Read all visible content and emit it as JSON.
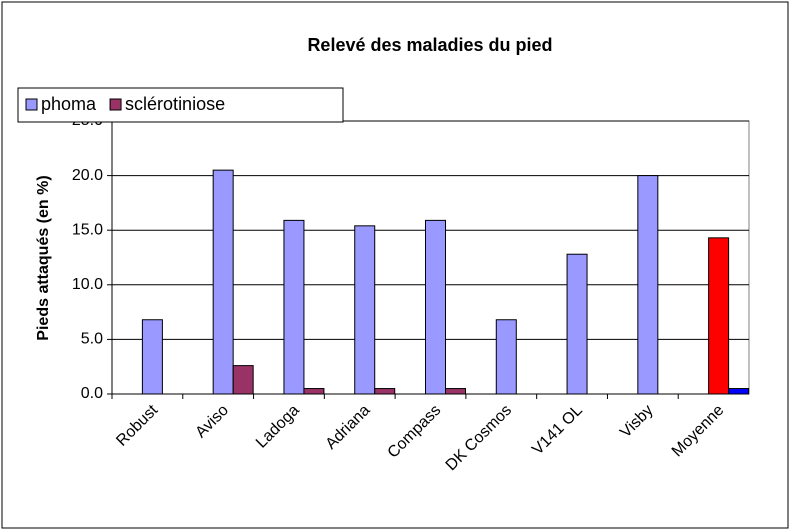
{
  "chart_data": {
    "type": "bar",
    "title": "Relevé des maladies du pied",
    "y_label": "Pieds attaqués (en %)",
    "categories": [
      "Robust",
      "Aviso",
      "Ladoga",
      "Adriana",
      "Compass",
      "DK Cosmos",
      "V141 OL",
      "Visby",
      "Moyenne"
    ],
    "series": [
      {
        "name": "phoma",
        "color": "#9999ff",
        "values": [
          6.8,
          20.5,
          15.9,
          15.4,
          15.9,
          6.8,
          12.8,
          20.0,
          14.3
        ],
        "colors": [
          "#9999ff",
          "#9999ff",
          "#9999ff",
          "#9999ff",
          "#9999ff",
          "#9999ff",
          "#9999ff",
          "#9999ff",
          "#ff0000"
        ]
      },
      {
        "name": "sclérotiniose",
        "color": "#993366",
        "values": [
          0,
          2.6,
          0.5,
          0.5,
          0.5,
          0,
          0,
          0,
          0.5
        ],
        "colors": [
          "#993366",
          "#993366",
          "#993366",
          "#993366",
          "#993366",
          "#993366",
          "#993366",
          "#993366",
          "#0000ff"
        ]
      }
    ],
    "ylim": [
      0,
      25
    ],
    "yticks": [
      {
        "value": 0,
        "label": "0.0"
      },
      {
        "value": 5,
        "label": "5.0"
      },
      {
        "value": 10,
        "label": "10.0"
      },
      {
        "value": 15,
        "label": "15.0"
      },
      {
        "value": 20,
        "label": "20.0"
      },
      {
        "value": 25,
        "label": "25.0"
      }
    ],
    "grid": true,
    "legend": "top-left"
  }
}
